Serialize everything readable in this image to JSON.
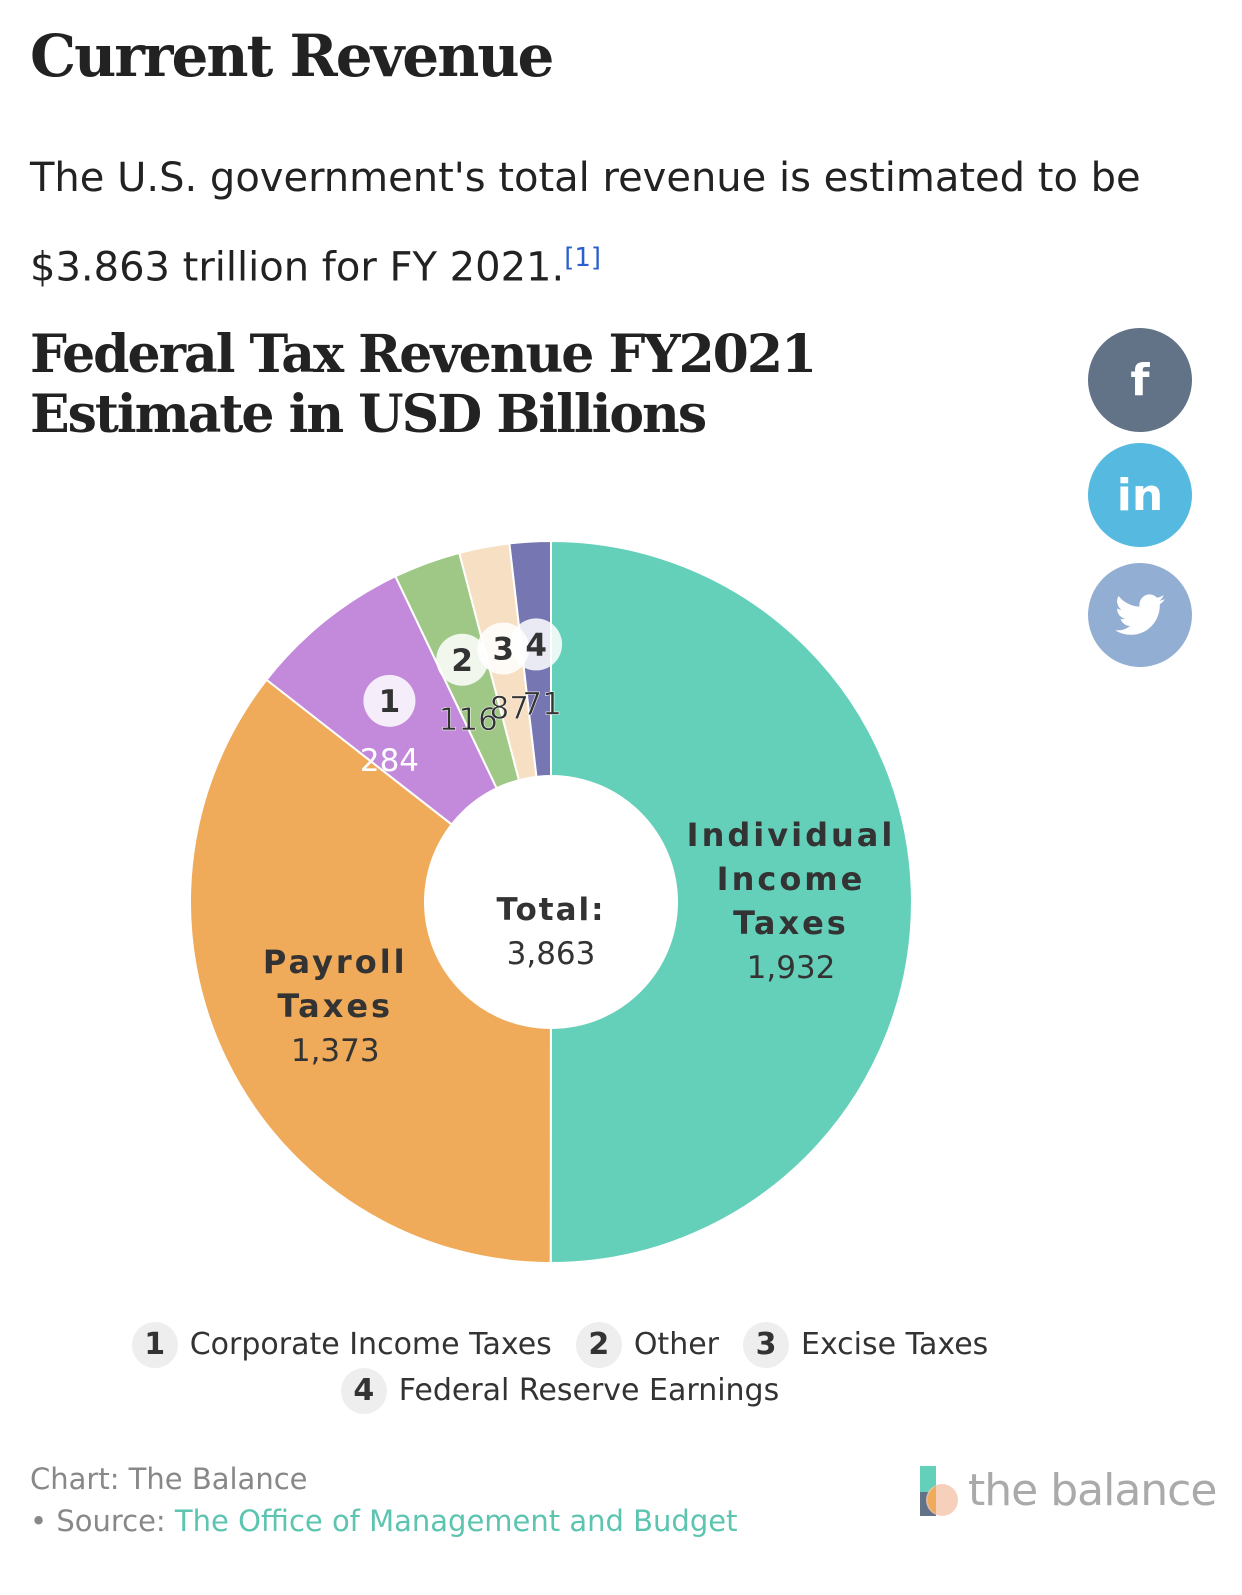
{
  "heading": "Current Revenue",
  "intro": "The U.S. government's total revenue is estimated to be $3.863 trillion for FY 2021.",
  "footnote": "[1]",
  "share": {
    "facebook": "f",
    "linkedin": "in"
  },
  "colors": {
    "facebook": "#627388",
    "linkedin": "#55b9e0",
    "twitter": "#93aed3"
  },
  "chart_data": {
    "type": "pie",
    "title": "Federal Tax Revenue FY2021 Estimate in USD Billions",
    "center_label": "Total:",
    "center_value": "3,863",
    "slices": [
      {
        "label": "Individual Income Taxes",
        "value": 1932,
        "display": "1,932",
        "color": "#64d0ba",
        "marker": null
      },
      {
        "label": "Payroll Taxes",
        "value": 1373,
        "display": "1,373",
        "color": "#f0ab5a",
        "marker": null
      },
      {
        "label": "Corporate Income Taxes",
        "value": 284,
        "display": "284",
        "color": "#c389db",
        "marker": "1"
      },
      {
        "label": "Other",
        "value": 116,
        "display": "116",
        "color": "#9fc887",
        "marker": "2"
      },
      {
        "label": "Excise Taxes",
        "value": 87,
        "display": "87",
        "color": "#f6dfc2",
        "marker": "3"
      },
      {
        "label": "Federal Reserve Earnings",
        "value": 71,
        "display": "71",
        "color": "#7576b2",
        "marker": "4"
      }
    ]
  },
  "legend": [
    {
      "num": "1",
      "label": "Corporate Income Taxes"
    },
    {
      "num": "2",
      "label": "Other"
    },
    {
      "num": "3",
      "label": "Excise Taxes"
    },
    {
      "num": "4",
      "label": "Federal Reserve Earnings"
    }
  ],
  "footer": {
    "chart_credit": "Chart: The Balance",
    "source_prefix": "• Source:",
    "source_link": "The Office of Management and Budget"
  },
  "logo_text": "the balance"
}
